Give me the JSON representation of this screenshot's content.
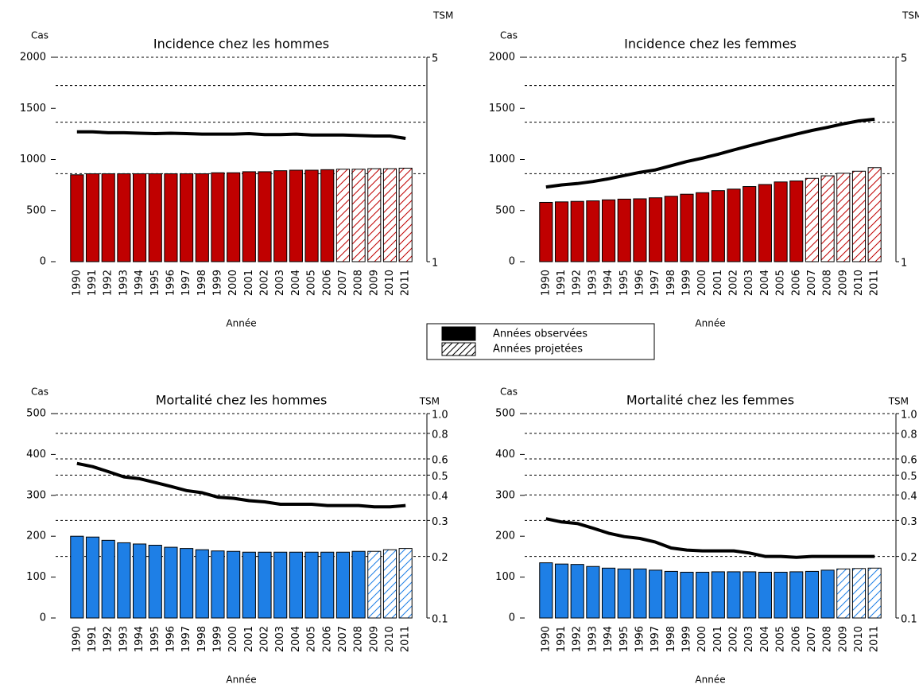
{
  "chart_data": [
    {
      "type": "bar",
      "title": "Incidence chez les hommes",
      "ylabel": "Cas",
      "y2label": "TSM",
      "xlabel": "Année",
      "categories": [
        "1990",
        "1991",
        "1992",
        "1993",
        "1994",
        "1995",
        "1996",
        "1997",
        "1998",
        "1999",
        "2000",
        "2001",
        "2002",
        "2003",
        "2004",
        "2005",
        "2006",
        "2007",
        "2008",
        "2009",
        "2010",
        "2011"
      ],
      "first_projected": "2007",
      "series": [
        {
          "values": [
            850,
            860,
            860,
            860,
            860,
            860,
            860,
            860,
            860,
            870,
            870,
            880,
            880,
            890,
            895,
            895,
            900,
            905,
            905,
            910,
            910,
            915
          ],
          "color": "#c00000"
        },
        {
          "values": [
            2.78,
            2.78,
            2.76,
            2.76,
            2.75,
            2.74,
            2.75,
            2.74,
            2.73,
            2.73,
            2.73,
            2.74,
            2.72,
            2.72,
            2.73,
            2.71,
            2.71,
            2.71,
            2.7,
            2.69,
            2.69,
            2.64
          ],
          "color": "#000000",
          "axis": "y2"
        }
      ],
      "ylim": [
        0,
        2000
      ],
      "yticks": [
        0,
        500,
        1000,
        1500,
        2000
      ],
      "y2lim": [
        1,
        5
      ],
      "y2ticks": [
        1,
        5
      ],
      "y2minor": [
        2,
        3,
        4
      ],
      "y2log": true,
      "y2grid": true
    },
    {
      "type": "bar",
      "title": "Incidence chez les femmes",
      "ylabel": "Cas",
      "y2label": "TSM",
      "xlabel": "Année",
      "categories": [
        "1990",
        "1991",
        "1992",
        "1993",
        "1994",
        "1995",
        "1996",
        "1997",
        "1998",
        "1999",
        "2000",
        "2001",
        "2002",
        "2003",
        "2004",
        "2005",
        "2006",
        "2007",
        "2008",
        "2009",
        "2010",
        "2011"
      ],
      "first_projected": "2007",
      "series": [
        {
          "values": [
            580,
            585,
            590,
            595,
            605,
            612,
            615,
            625,
            640,
            660,
            675,
            695,
            710,
            735,
            755,
            780,
            790,
            815,
            840,
            865,
            885,
            920
          ],
          "color": "#c00000"
        },
        {
          "values": [
            1.8,
            1.83,
            1.85,
            1.88,
            1.92,
            1.97,
            2.02,
            2.06,
            2.13,
            2.2,
            2.26,
            2.33,
            2.41,
            2.49,
            2.57,
            2.65,
            2.73,
            2.81,
            2.88,
            2.96,
            3.03,
            3.07
          ],
          "color": "#000000",
          "axis": "y2"
        }
      ],
      "ylim": [
        0,
        2000
      ],
      "yticks": [
        0,
        500,
        1000,
        1500,
        2000
      ],
      "y2lim": [
        1,
        5
      ],
      "y2ticks": [
        1,
        5
      ],
      "y2minor": [
        2,
        3,
        4
      ],
      "y2log": true,
      "y2grid": true
    },
    {
      "type": "bar",
      "title": "Mortalité chez les hommes",
      "ylabel": "Cas",
      "y2label": "TSM",
      "xlabel": "Année",
      "categories": [
        "1990",
        "1991",
        "1992",
        "1993",
        "1994",
        "1995",
        "1996",
        "1997",
        "1998",
        "1999",
        "2000",
        "2001",
        "2002",
        "2003",
        "2004",
        "2005",
        "2006",
        "2007",
        "2008",
        "2009",
        "2010",
        "2011"
      ],
      "first_projected": "2009",
      "series": [
        {
          "values": [
            200,
            198,
            190,
            184,
            181,
            178,
            173,
            170,
            167,
            164,
            163,
            161,
            161,
            161,
            161,
            161,
            161,
            161,
            163,
            163,
            167,
            170
          ],
          "color": "#1e7fe6"
        },
        {
          "values": [
            0.57,
            0.55,
            0.52,
            0.49,
            0.48,
            0.46,
            0.44,
            0.42,
            0.41,
            0.39,
            0.385,
            0.375,
            0.37,
            0.36,
            0.36,
            0.36,
            0.355,
            0.355,
            0.355,
            0.35,
            0.35,
            0.355
          ],
          "color": "#000000",
          "axis": "y2"
        }
      ],
      "ylim": [
        0,
        500
      ],
      "yticks": [
        0,
        100,
        200,
        300,
        400,
        500
      ],
      "y2lim": [
        0.1,
        1
      ],
      "y2ticks": [
        0.1,
        0.2,
        0.3,
        0.4,
        0.5,
        0.6,
        0.8,
        {
          "value": 1,
          "label": "1.0"
        }
      ],
      "y2log": true,
      "y2grid": true
    },
    {
      "type": "bar",
      "title": "Mortalité chez les femmes",
      "ylabel": "Cas",
      "y2label": "TSM",
      "xlabel": "Année",
      "categories": [
        "1990",
        "1991",
        "1992",
        "1993",
        "1994",
        "1995",
        "1996",
        "1997",
        "1998",
        "1999",
        "2000",
        "2001",
        "2002",
        "2003",
        "2004",
        "2005",
        "2006",
        "2007",
        "2008",
        "2009",
        "2010",
        "2011"
      ],
      "first_projected": "2009",
      "series": [
        {
          "values": [
            135,
            132,
            131,
            126,
            122,
            120,
            120,
            117,
            114,
            112,
            112,
            113,
            113,
            113,
            112,
            112,
            113,
            114,
            117,
            120,
            121,
            122
          ],
          "color": "#1e7fe6"
        },
        {
          "values": [
            0.306,
            0.295,
            0.29,
            0.275,
            0.26,
            0.25,
            0.245,
            0.235,
            0.22,
            0.215,
            0.213,
            0.213,
            0.213,
            0.208,
            0.2,
            0.2,
            0.198,
            0.2,
            0.2,
            0.2,
            0.2,
            0.2
          ],
          "color": "#000000",
          "axis": "y2"
        }
      ],
      "ylim": [
        0,
        500
      ],
      "yticks": [
        0,
        100,
        200,
        300,
        400,
        500
      ],
      "y2lim": [
        0.1,
        1
      ],
      "y2ticks": [
        0.1,
        0.2,
        0.3,
        0.4,
        0.5,
        0.6,
        0.8,
        {
          "value": 1,
          "label": "1.0"
        }
      ],
      "y2log": true,
      "y2grid": true
    }
  ],
  "legend": {
    "observed": "Années observées",
    "projected": "Années projetées"
  }
}
